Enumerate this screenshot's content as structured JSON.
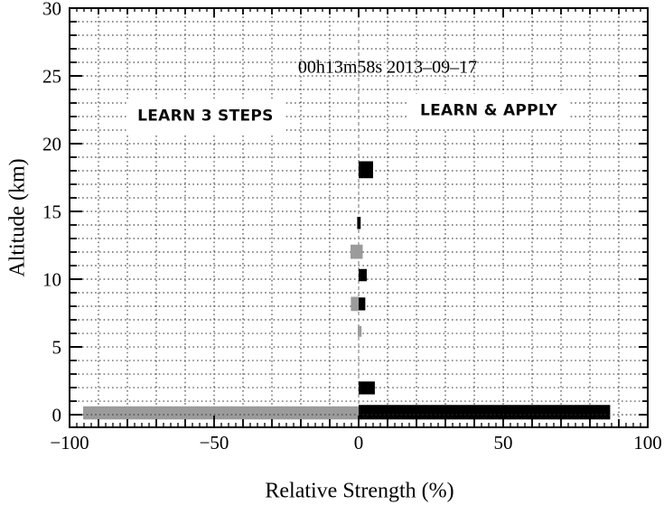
{
  "chart_data": {
    "type": "bar",
    "orientation": "horizontal",
    "title": "00h13m58s 2013–09–17",
    "title_anchor": {
      "x": 10,
      "y": 25.6
    },
    "xlabel": "Relative Strength (%)",
    "ylabel": "Altitude (km)",
    "xlim": [
      -100,
      100
    ],
    "ylim": [
      -0.93,
      30
    ],
    "x_major_ticks": [
      -100,
      -50,
      0,
      50,
      100
    ],
    "x_major_tick_labels": [
      "−100",
      "−50",
      "0",
      "50",
      "100"
    ],
    "x_medium_tick_spacing": 10,
    "x_minor_tick_spacing": 2.5,
    "y_major_ticks": [
      0,
      5,
      10,
      15,
      20,
      25,
      30
    ],
    "y_major_tick_labels": [
      "0",
      "5",
      "10",
      "15",
      "20",
      "25",
      "30"
    ],
    "y_minor_tick_spacing": 1,
    "grid": {
      "x_spacing": 10,
      "y_spacing": 1,
      "style": "dotted",
      "color": "#4a4a4a"
    },
    "zero_line": {
      "x": 0,
      "style": "dashed",
      "color": "#888888"
    },
    "colors": {
      "positive": "#000000",
      "negative": "#9b9b9b",
      "frame": "#000000",
      "background": "#ffffff"
    },
    "annotations": [
      {
        "text": "LEARN 3 STEPS",
        "x": -53,
        "y": 22.0
      },
      {
        "text": "LEARN & APPLY",
        "x": 45,
        "y": 22.4
      }
    ],
    "bars": [
      {
        "x_from": -95.3,
        "x_to": 0,
        "y_from": -0.35,
        "y_to": 0.62,
        "color": "negative"
      },
      {
        "x_from": 0,
        "x_to": 87,
        "y_from": -0.35,
        "y_to": 0.72,
        "color": "positive"
      },
      {
        "x_from": 0,
        "x_to": 5.6,
        "y_from": 1.5,
        "y_to": 2.45,
        "color": "positive"
      },
      {
        "x_from": -0.3,
        "x_to": 1.0,
        "y_from": 5.75,
        "y_to": 6.55,
        "color": "negative"
      },
      {
        "x_from": -2.7,
        "x_to": 0,
        "y_from": 7.65,
        "y_to": 8.7,
        "color": "negative"
      },
      {
        "x_from": 0,
        "x_to": 2.3,
        "y_from": 7.7,
        "y_to": 8.65,
        "color": "positive"
      },
      {
        "x_from": 0,
        "x_to": 2.8,
        "y_from": 9.85,
        "y_to": 10.75,
        "color": "positive"
      },
      {
        "x_from": -2.8,
        "x_to": 1.4,
        "y_from": 11.5,
        "y_to": 12.55,
        "color": "negative"
      },
      {
        "x_from": -0.5,
        "x_to": 0.7,
        "y_from": 13.7,
        "y_to": 14.6,
        "color": "positive"
      },
      {
        "x_from": 0,
        "x_to": 5.0,
        "y_from": 17.45,
        "y_to": 18.7,
        "color": "positive"
      }
    ]
  }
}
